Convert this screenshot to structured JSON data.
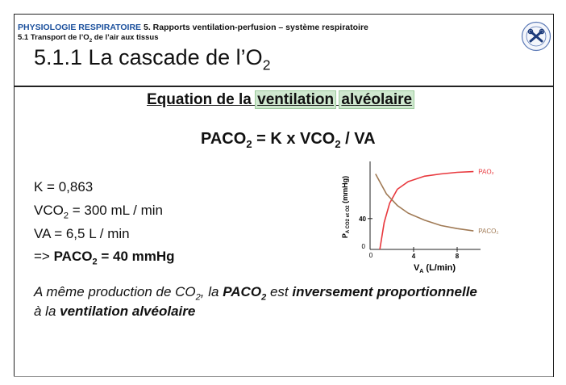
{
  "header": {
    "department": "PHYSIOLOGIE RESPIRATOIRE",
    "chapter": "5. Rapports ventilation-perfusion – système respiratoire",
    "sub_pre": "5.1 Transport de l’O",
    "sub_sub": "2",
    "sub_post": " de l’air aux tissus"
  },
  "title": {
    "text": "5.1.1 La cascade de l’O",
    "sub": "2"
  },
  "section": {
    "w1": "Equation de la ",
    "w2": "ventilation",
    "w3": " ",
    "w4": "alvéolaire"
  },
  "equation": {
    "a": "PACO",
    "a_sub": "2",
    "b": " = K x VCO",
    "b_sub": "2",
    "c": " / VA"
  },
  "params": {
    "k": "K = 0,863",
    "vco2_pre": "VCO",
    "vco2_sub": "2",
    "vco2_post": " = 300 mL / min",
    "va": "VA = 6,5 L / min",
    "res_pre": "=> ",
    "res_bold": "PACO",
    "res_sub": "2",
    "res_post": " = 40 mmHg"
  },
  "note": {
    "l1_a": "A même production de CO",
    "l1_a_sub": "2",
    "l1_b": ", la ",
    "l1_c": "PACO",
    "l1_c_sub": "2",
    "l1_d": " est ",
    "l1_e": "inversement proportionnelle",
    "l2_a": "à la ",
    "l2_b": "ventilation alvéolaire"
  },
  "chart_data": {
    "type": "line",
    "ylabel_pre": "P",
    "ylabel_sub": "A",
    "ylabel_mid": " CO2 et O2",
    "ylabel_unit": " (mmHg)",
    "xlabel_pre": "V",
    "xlabel_sub": "A",
    "xlabel_post": " (L/min)",
    "x_ticks": [
      "4",
      "8"
    ],
    "y_ticks": [
      "40"
    ],
    "origin_labels": [
      "0",
      "0"
    ],
    "xlim": [
      0,
      10
    ],
    "ylim": [
      0,
      110
    ],
    "series": [
      {
        "name": "PAO₂",
        "color": "#e8383d",
        "x": [
          0.9,
          1.3,
          1.8,
          2.5,
          3.5,
          5,
          6.5,
          8,
          9.5
        ],
        "y": [
          0,
          35,
          60,
          78,
          88,
          95,
          98,
          100,
          101
        ]
      },
      {
        "name": "PACO₂",
        "color": "#a07a55",
        "x": [
          0.5,
          1,
          1.5,
          2.5,
          3.5,
          5,
          6.5,
          8,
          9.5
        ],
        "y": [
          98,
          85,
          72,
          57,
          47,
          38,
          31,
          27,
          24
        ]
      }
    ]
  }
}
